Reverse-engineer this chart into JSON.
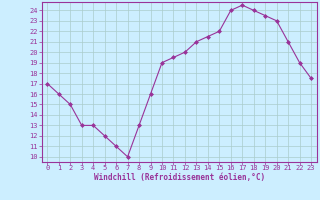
{
  "x": [
    0,
    1,
    2,
    3,
    4,
    5,
    6,
    7,
    8,
    9,
    10,
    11,
    12,
    13,
    14,
    15,
    16,
    17,
    18,
    19,
    20,
    21,
    22,
    23
  ],
  "y": [
    17,
    16,
    15,
    13,
    13,
    12,
    11,
    10,
    13,
    16,
    19,
    19.5,
    20,
    21,
    21.5,
    22,
    24,
    24.5,
    24,
    23.5,
    23,
    21,
    19,
    17.5
  ],
  "line_color": "#993399",
  "marker": "D",
  "marker_size": 2.0,
  "bg_color": "#cceeff",
  "grid_color": "#aacccc",
  "xlabel": "Windchill (Refroidissement éolien,°C)",
  "xlabel_color": "#993399",
  "tick_color": "#993399",
  "spine_color": "#993399",
  "ylim": [
    9.5,
    24.8
  ],
  "xlim": [
    -0.5,
    23.5
  ],
  "yticks": [
    10,
    11,
    12,
    13,
    14,
    15,
    16,
    17,
    18,
    19,
    20,
    21,
    22,
    23,
    24
  ],
  "xticks": [
    0,
    1,
    2,
    3,
    4,
    5,
    6,
    7,
    8,
    9,
    10,
    11,
    12,
    13,
    14,
    15,
    16,
    17,
    18,
    19,
    20,
    21,
    22,
    23
  ],
  "tick_fontsize": 5.0,
  "xlabel_fontsize": 5.5
}
